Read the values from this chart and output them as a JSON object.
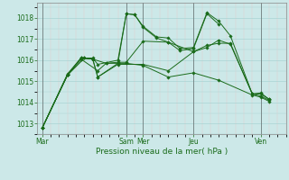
{
  "xlabel": "Pression niveau de la mer( hPa )",
  "bg_color": "#cce8e8",
  "grid_major_color": "#aad4d4",
  "grid_minor_color": "#e8c8c8",
  "line_color": "#1a6b1a",
  "tick_label_color": "#1a6b1a",
  "axis_label_color": "#1a6b1a",
  "ylim": [
    1012.5,
    1018.7
  ],
  "yticks": [
    1013,
    1014,
    1015,
    1016,
    1017,
    1018
  ],
  "x_day_labels": [
    "Mar",
    "Sam",
    "Mer",
    "Jeu",
    "Ven"
  ],
  "x_day_positions": [
    0.0,
    5.0,
    6.0,
    9.0,
    13.0
  ],
  "xlim": [
    -0.3,
    14.5
  ],
  "series": [
    [
      0.0,
      1012.8,
      1.5,
      1015.3,
      2.5,
      1016.1,
      3.0,
      1016.1,
      3.3,
      1015.8,
      4.5,
      1016.0,
      5.0,
      1018.2,
      5.5,
      1018.15,
      6.0,
      1017.6,
      6.8,
      1017.1,
      7.5,
      1017.05,
      8.2,
      1016.55,
      9.0,
      1016.6,
      9.8,
      1018.25,
      10.5,
      1017.85,
      11.2,
      1017.15,
      12.5,
      1014.4,
      13.0,
      1014.45,
      13.5,
      1014.15
    ],
    [
      0.0,
      1012.8,
      1.5,
      1015.3,
      2.3,
      1016.1,
      3.0,
      1016.05,
      3.3,
      1015.2,
      4.5,
      1015.85,
      5.0,
      1018.2,
      5.5,
      1018.15,
      6.0,
      1017.55,
      6.8,
      1017.05,
      7.5,
      1016.85,
      8.2,
      1016.45,
      9.0,
      1016.55,
      9.8,
      1018.2,
      10.5,
      1017.7
    ],
    [
      0.0,
      1012.8,
      1.5,
      1015.35,
      2.3,
      1016.1,
      3.0,
      1016.05,
      3.8,
      1015.85,
      4.5,
      1015.9,
      5.0,
      1015.9,
      6.0,
      1016.9,
      7.5,
      1016.85,
      9.0,
      1016.4,
      9.8,
      1016.7,
      10.5,
      1016.8,
      11.2,
      1016.8,
      12.5,
      1014.4,
      13.0,
      1014.4,
      13.5,
      1014.15
    ],
    [
      0.0,
      1012.8,
      1.5,
      1015.3,
      2.5,
      1016.1,
      3.0,
      1016.05,
      3.3,
      1015.2,
      4.5,
      1015.8,
      6.0,
      1015.8,
      7.5,
      1015.5,
      9.0,
      1016.4,
      9.8,
      1016.6,
      10.5,
      1016.95,
      11.2,
      1016.75,
      12.5,
      1014.4,
      13.0,
      1014.3,
      13.5,
      1014.1
    ],
    [
      0.0,
      1012.8,
      1.5,
      1015.3,
      2.3,
      1016.05,
      3.3,
      1015.5,
      3.8,
      1015.85,
      5.0,
      1015.85,
      6.0,
      1015.75,
      7.5,
      1015.2,
      9.0,
      1015.4,
      10.5,
      1015.05,
      12.5,
      1014.35,
      13.0,
      1014.25,
      13.5,
      1014.05
    ]
  ]
}
